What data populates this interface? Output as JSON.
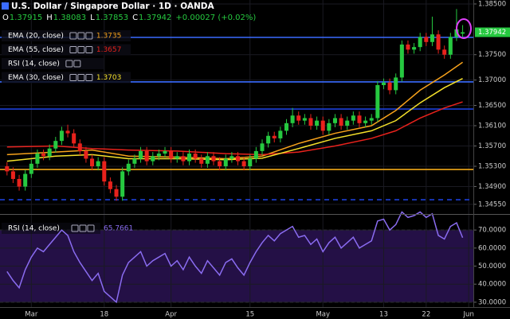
{
  "chart_data": [
    {
      "type": "candlestick",
      "title": "U.S. Dollar / Singapore Dollar · 1D · OANDA",
      "header": [
        {
          "label": "O",
          "value": "1.37915"
        },
        {
          "label": "H",
          "value": "1.38083"
        },
        {
          "label": "L",
          "value": "1.37853"
        },
        {
          "label": "C",
          "value": "1.37942"
        }
      ],
      "change": "+0.00027 (+0.02%)",
      "up_color": "#26c940",
      "down_color": "#e8221c",
      "categories": [
        null,
        null,
        null,
        null,
        "Mar",
        null,
        null,
        null,
        null,
        null,
        null,
        null,
        null,
        null,
        null,
        null,
        "18",
        null,
        null,
        null,
        null,
        null,
        null,
        null,
        null,
        null,
        null,
        "Apr",
        null,
        null,
        null,
        null,
        null,
        null,
        null,
        null,
        null,
        null,
        null,
        null,
        "15",
        null,
        null,
        null,
        null,
        null,
        null,
        null,
        null,
        null,
        null,
        null,
        "May",
        null,
        null,
        null,
        null,
        null,
        null,
        null,
        null,
        null,
        "13",
        null,
        null,
        null,
        null,
        null,
        null,
        "22",
        null,
        null,
        null,
        null,
        null,
        null,
        "Jun"
      ],
      "ohlc": [
        [
          1.353,
          1.3538,
          1.3512,
          1.352
        ],
        [
          1.352,
          1.3528,
          1.3497,
          1.3505
        ],
        [
          1.3505,
          1.3513,
          1.3482,
          1.349
        ],
        [
          1.349,
          1.3523,
          1.3482,
          1.3515
        ],
        [
          1.3515,
          1.3543,
          1.3507,
          1.3535
        ],
        [
          1.3535,
          1.3563,
          1.3527,
          1.3555
        ],
        [
          1.3555,
          1.3563,
          1.3542,
          1.355
        ],
        [
          1.355,
          1.3573,
          1.3542,
          1.3565
        ],
        [
          1.3565,
          1.3588,
          1.3557,
          1.358
        ],
        [
          1.358,
          1.3608,
          1.3572,
          1.36
        ],
        [
          1.36,
          1.3612,
          1.3587,
          1.3595
        ],
        [
          1.3595,
          1.3603,
          1.3567,
          1.3575
        ],
        [
          1.3575,
          1.3583,
          1.3552,
          1.356
        ],
        [
          1.356,
          1.3568,
          1.3537,
          1.3545
        ],
        [
          1.3545,
          1.3553,
          1.3522,
          1.353
        ],
        [
          1.353,
          1.3548,
          1.3522,
          1.354
        ],
        [
          1.354,
          1.3548,
          1.3492,
          1.35
        ],
        [
          1.35,
          1.3508,
          1.3477,
          1.3485
        ],
        [
          1.3485,
          1.3493,
          1.3462,
          1.347
        ],
        [
          1.347,
          1.3528,
          1.3462,
          1.352
        ],
        [
          1.352,
          1.3543,
          1.3512,
          1.3535
        ],
        [
          1.3535,
          1.3553,
          1.3527,
          1.3545
        ],
        [
          1.3545,
          1.3568,
          1.3537,
          1.356
        ],
        [
          1.356,
          1.3568,
          1.3532,
          1.354
        ],
        [
          1.354,
          1.3558,
          1.3532,
          1.355
        ],
        [
          1.355,
          1.3563,
          1.3542,
          1.3555
        ],
        [
          1.3555,
          1.3568,
          1.3547,
          1.356
        ],
        [
          1.356,
          1.3568,
          1.3537,
          1.3545
        ],
        [
          1.3545,
          1.3558,
          1.3537,
          1.355
        ],
        [
          1.355,
          1.3558,
          1.3532,
          1.354
        ],
        [
          1.354,
          1.3563,
          1.3532,
          1.3555
        ],
        [
          1.3555,
          1.3563,
          1.3537,
          1.3545
        ],
        [
          1.3545,
          1.3553,
          1.3527,
          1.3535
        ],
        [
          1.3535,
          1.3558,
          1.3527,
          1.355
        ],
        [
          1.355,
          1.3558,
          1.3532,
          1.354
        ],
        [
          1.354,
          1.3548,
          1.3522,
          1.353
        ],
        [
          1.353,
          1.3553,
          1.3522,
          1.3545
        ],
        [
          1.3545,
          1.3558,
          1.3537,
          1.355
        ],
        [
          1.355,
          1.3558,
          1.3532,
          1.354
        ],
        [
          1.354,
          1.3548,
          1.3522,
          1.353
        ],
        [
          1.353,
          1.3553,
          1.3522,
          1.3545
        ],
        [
          1.3545,
          1.3568,
          1.3537,
          1.356
        ],
        [
          1.356,
          1.3583,
          1.3552,
          1.3575
        ],
        [
          1.3575,
          1.3598,
          1.3567,
          1.359
        ],
        [
          1.359,
          1.3598,
          1.3577,
          1.3585
        ],
        [
          1.3585,
          1.3608,
          1.3577,
          1.36
        ],
        [
          1.36,
          1.3623,
          1.3592,
          1.3615
        ],
        [
          1.3615,
          1.3645,
          1.3607,
          1.363
        ],
        [
          1.363,
          1.3638,
          1.3612,
          1.362
        ],
        [
          1.362,
          1.3633,
          1.3612,
          1.3625
        ],
        [
          1.3625,
          1.3633,
          1.3602,
          1.361
        ],
        [
          1.361,
          1.3628,
          1.3602,
          1.362
        ],
        [
          1.362,
          1.3628,
          1.3592,
          1.36
        ],
        [
          1.36,
          1.3623,
          1.3592,
          1.3615
        ],
        [
          1.3615,
          1.3633,
          1.3607,
          1.3625
        ],
        [
          1.3625,
          1.3633,
          1.3602,
          1.361
        ],
        [
          1.361,
          1.3628,
          1.3602,
          1.362
        ],
        [
          1.362,
          1.3638,
          1.3612,
          1.363
        ],
        [
          1.363,
          1.3638,
          1.3607,
          1.3615
        ],
        [
          1.3615,
          1.3628,
          1.3607,
          1.362
        ],
        [
          1.362,
          1.3633,
          1.3612,
          1.3625
        ],
        [
          1.3625,
          1.3698,
          1.3617,
          1.369
        ],
        [
          1.369,
          1.3703,
          1.3682,
          1.3695
        ],
        [
          1.3695,
          1.3703,
          1.3672,
          1.368
        ],
        [
          1.368,
          1.3713,
          1.3672,
          1.3705
        ],
        [
          1.3705,
          1.3778,
          1.3697,
          1.377
        ],
        [
          1.377,
          1.3778,
          1.3752,
          1.376
        ],
        [
          1.376,
          1.3773,
          1.3752,
          1.3765
        ],
        [
          1.3765,
          1.3793,
          1.3757,
          1.3785
        ],
        [
          1.3785,
          1.3793,
          1.3767,
          1.3775
        ],
        [
          1.3775,
          1.3825,
          1.3767,
          1.379
        ],
        [
          1.379,
          1.3798,
          1.3752,
          1.376
        ],
        [
          1.376,
          1.3768,
          1.3742,
          1.375
        ],
        [
          1.375,
          1.3793,
          1.3742,
          1.3785
        ],
        [
          1.3785,
          1.384,
          1.3777,
          1.38
        ],
        [
          1.37915,
          1.38083,
          1.37853,
          1.37942
        ],
        null
      ],
      "series": [
        {
          "name": "EMA (20, close)",
          "color": "#f7a21b",
          "last_value": 1.3735,
          "x": [
            0,
            8,
            14,
            20,
            28,
            36,
            42,
            48,
            54,
            60,
            64,
            68,
            72,
            75
          ],
          "values": [
            1.3553,
            1.3558,
            1.3562,
            1.355,
            1.3548,
            1.3545,
            1.355,
            1.3575,
            1.3595,
            1.361,
            1.364,
            1.368,
            1.371,
            1.3735
          ]
        },
        {
          "name": "EMA (55, close)",
          "color": "#e8221c",
          "last_value": 1.3657,
          "x": [
            0,
            8,
            14,
            20,
            28,
            36,
            42,
            48,
            54,
            60,
            64,
            68,
            72,
            75
          ],
          "values": [
            1.3568,
            1.357,
            1.3565,
            1.3562,
            1.356,
            1.3555,
            1.3553,
            1.3558,
            1.357,
            1.3585,
            1.36,
            1.3625,
            1.3645,
            1.3657
          ]
        },
        {
          "name": "EMA (30, close)",
          "color": "#f5e12a",
          "last_value": 1.3703,
          "x": [
            0,
            8,
            14,
            20,
            28,
            36,
            42,
            48,
            54,
            60,
            64,
            68,
            72,
            75
          ],
          "values": [
            1.354,
            1.355,
            1.3553,
            1.3545,
            1.3545,
            1.3543,
            1.3546,
            1.3565,
            1.3585,
            1.36,
            1.362,
            1.3655,
            1.3685,
            1.3703
          ]
        }
      ],
      "indicator_label": "RSI (14, close)",
      "hlines": [
        {
          "value": 1.37841,
          "color": "#3a6bff"
        },
        {
          "value": 1.36963,
          "color": "#3a6bff"
        },
        {
          "value": 1.36429,
          "color": "#1c3fd8"
        },
        {
          "value": 1.35237,
          "color": "#f0a818"
        },
        {
          "value": 1.34641,
          "color": "#1c3fd8",
          "dashed": true
        }
      ],
      "last_price": {
        "value": 1.37942,
        "label": "1.37942",
        "color": "#26c940"
      },
      "ylim": [
        1.34375,
        1.38578
      ],
      "yticks": [
        {
          "value": 1.385,
          "label": "1.38500"
        },
        {
          "value": 1.375,
          "label": "1.37500"
        },
        {
          "value": 1.37,
          "label": "1.37000"
        },
        {
          "value": 1.365,
          "label": "1.36500"
        },
        {
          "value": 1.361,
          "label": "1.36100"
        },
        {
          "value": 1.357,
          "label": "1.35700"
        },
        {
          "value": 1.353,
          "label": "1.35300"
        },
        {
          "value": 1.349,
          "label": "1.34900"
        },
        {
          "value": 1.3455,
          "label": "1.34550"
        }
      ],
      "grid": true
    },
    {
      "type": "line",
      "title": "RSI (14, close)",
      "last_value": 65.7661,
      "series": [
        {
          "name": "RSI (14, close)",
          "color": "#8a6cf0",
          "values": [
            47,
            42,
            38,
            48,
            55,
            60,
            58,
            62,
            66,
            70,
            67,
            58,
            52,
            47,
            42,
            46,
            36,
            33,
            30,
            45,
            52,
            55,
            58,
            50,
            53,
            55,
            57,
            50,
            53,
            48,
            55,
            50,
            46,
            53,
            49,
            45,
            52,
            54,
            49,
            45,
            52,
            58,
            63,
            67,
            64,
            68,
            70,
            72,
            66,
            67,
            62,
            65,
            58,
            63,
            66,
            60,
            63,
            66,
            60,
            62,
            64,
            75,
            76,
            70,
            73,
            80,
            77,
            78,
            80,
            77,
            79,
            67,
            65,
            72,
            74,
            65.7661,
            null
          ]
        }
      ],
      "band": {
        "from": 30,
        "to": 70,
        "color": "#241046"
      },
      "ylim": [
        27.3,
        78
      ],
      "yticks": [
        {
          "value": 70,
          "label": "70.0000"
        },
        {
          "value": 60,
          "label": "60.0000"
        },
        {
          "value": 50,
          "label": "50.0000"
        },
        {
          "value": 40,
          "label": "40.0000"
        },
        {
          "value": 30,
          "label": "30.0000"
        }
      ],
      "grid": true
    }
  ]
}
